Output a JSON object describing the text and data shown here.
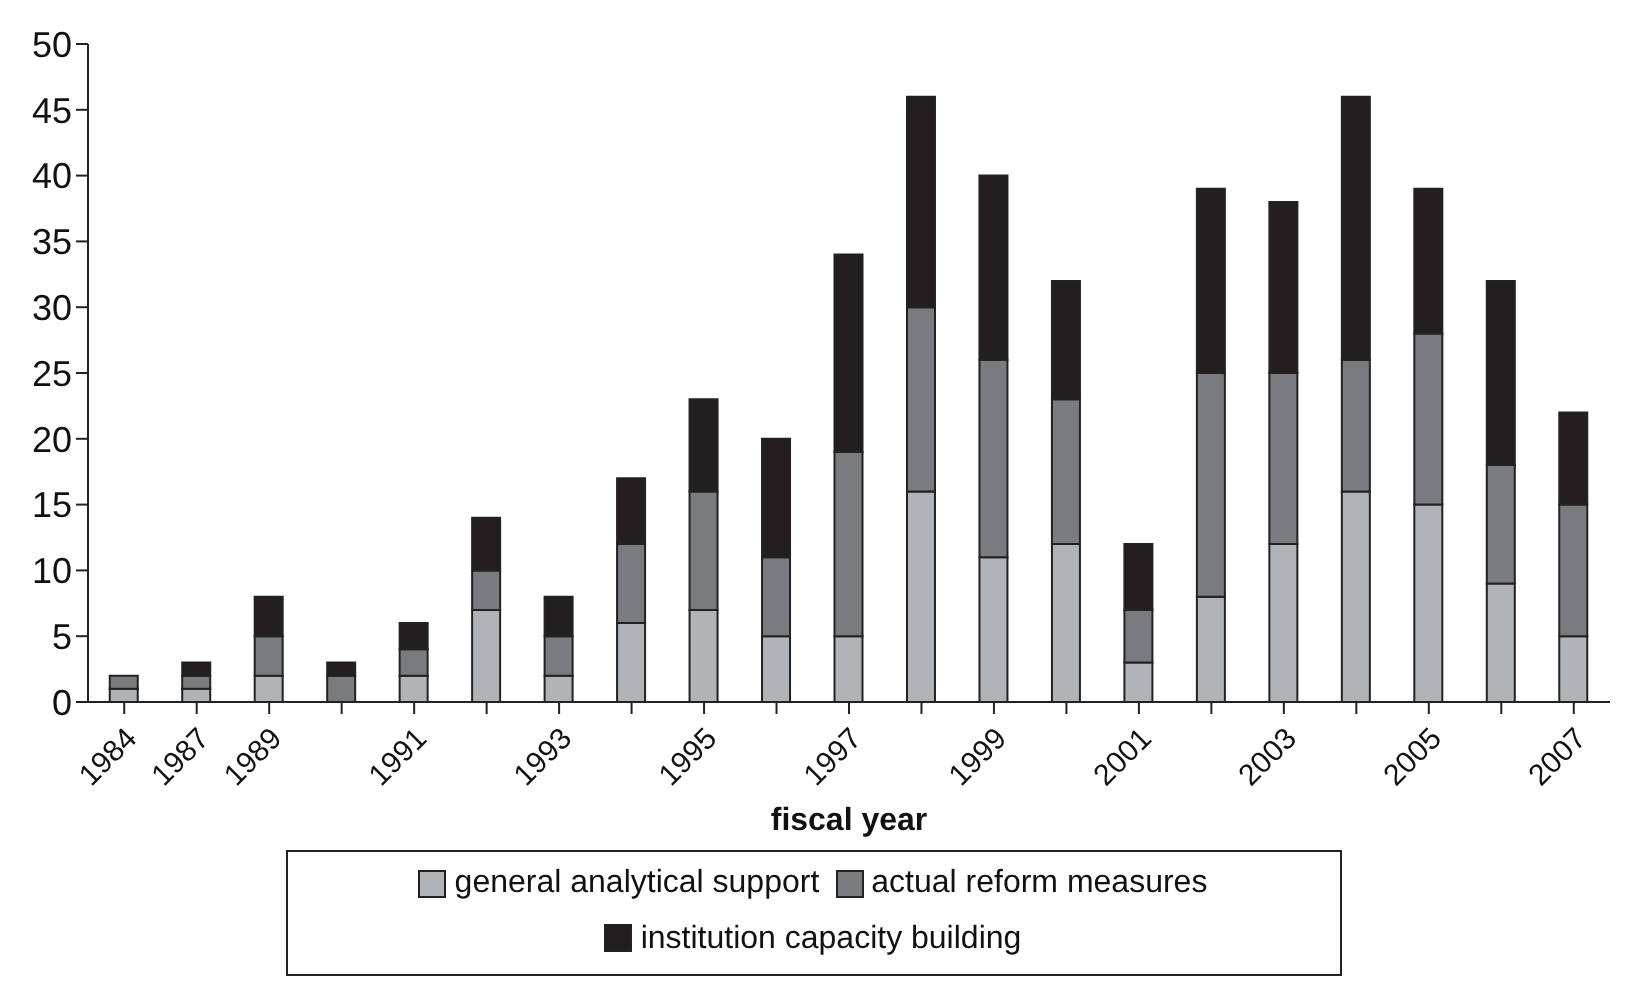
{
  "chart_data": {
    "type": "bar",
    "stacked": true,
    "xlabel": "fiscal year",
    "categories": [
      "1984",
      "1987",
      "1989",
      null,
      "1991",
      null,
      "1993",
      null,
      "1995",
      null,
      "1997",
      null,
      "1999",
      null,
      "2001",
      null,
      "2003",
      null,
      "2005",
      null,
      "2007"
    ],
    "series": [
      {
        "name": "general analytical support",
        "color": "#b1b4b6",
        "values": [
          1,
          1,
          2,
          0,
          2,
          7,
          2,
          6,
          7,
          5,
          5,
          16,
          11,
          12,
          3,
          8,
          12,
          16,
          15,
          9,
          5
        ]
      },
      {
        "name": "actual reform measures",
        "color": "#7a7b7e",
        "values": [
          1,
          1,
          3,
          2,
          2,
          3,
          3,
          6,
          9,
          6,
          14,
          14,
          15,
          11,
          4,
          17,
          13,
          10,
          13,
          9,
          10
        ]
      },
      {
        "name": "institution capacity building",
        "color": "#231f20",
        "values": [
          0,
          1,
          3,
          1,
          2,
          4,
          3,
          5,
          7,
          9,
          15,
          16,
          14,
          9,
          5,
          14,
          13,
          20,
          11,
          14,
          7
        ]
      }
    ],
    "ylim": [
      0,
      50
    ],
    "yticks": [
      0,
      5,
      10,
      15,
      20,
      25,
      30,
      35,
      40,
      45,
      50
    ],
    "grid": false,
    "legend": "bottom"
  }
}
